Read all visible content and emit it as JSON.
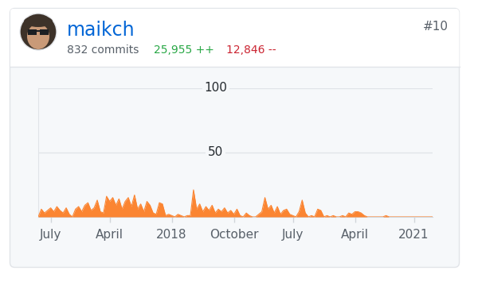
{
  "header": {
    "name": "maikch",
    "rank": "#10",
    "commits": "832 commits",
    "additions": "25,955 ++",
    "deletions": "12,846 --"
  },
  "chart_data": {
    "type": "area",
    "color": "#fb8532",
    "grid": true,
    "categories": [
      null,
      null,
      null,
      null,
      "July",
      null,
      null,
      null,
      null,
      null,
      null,
      null,
      null,
      null,
      null,
      null,
      null,
      null,
      null,
      null,
      null,
      null,
      null,
      "April",
      null,
      null,
      null,
      null,
      null,
      null,
      null,
      null,
      null,
      null,
      null,
      null,
      null,
      null,
      null,
      null,
      null,
      null,
      null,
      "2018",
      null,
      null,
      null,
      null,
      null,
      null,
      null,
      null,
      null,
      null,
      null,
      null,
      null,
      null,
      null,
      null,
      null,
      null,
      null,
      "October",
      null,
      null,
      null,
      null,
      null,
      null,
      null,
      null,
      null,
      null,
      null,
      null,
      null,
      null,
      null,
      null,
      null,
      null,
      "July",
      null,
      null,
      null,
      null,
      null,
      null,
      null,
      null,
      null,
      null,
      null,
      null,
      null,
      null,
      null,
      null,
      null,
      null,
      null,
      "April",
      null,
      null,
      null,
      null,
      null,
      null,
      null,
      null,
      null,
      null,
      null,
      null,
      null,
      null,
      null,
      null,
      null,
      null,
      "2021",
      null,
      null,
      null,
      null,
      null,
      null
    ],
    "values": [
      0,
      6,
      3,
      5,
      7,
      4,
      8,
      5,
      3,
      7,
      2,
      0,
      6,
      8,
      4,
      9,
      11,
      5,
      7,
      13,
      4,
      3,
      16,
      12,
      15,
      9,
      14,
      6,
      12,
      15,
      8,
      17,
      6,
      10,
      4,
      12,
      9,
      3,
      2,
      11,
      10,
      1,
      2,
      1,
      0,
      2,
      1,
      0,
      1,
      1,
      21,
      6,
      10,
      4,
      8,
      5,
      9,
      3,
      6,
      4,
      7,
      3,
      5,
      2,
      6,
      1,
      0,
      3,
      1,
      0,
      0,
      2,
      4,
      15,
      6,
      9,
      3,
      8,
      2,
      5,
      6,
      2,
      1,
      0,
      4,
      13,
      3,
      0,
      1,
      0,
      6,
      5,
      0,
      1,
      0,
      1,
      0,
      0,
      1,
      0,
      3,
      2,
      4,
      4,
      3,
      1,
      0,
      0,
      0,
      0,
      0,
      0,
      1,
      0,
      0,
      0,
      0,
      0,
      0,
      0,
      0,
      0,
      0,
      0,
      0,
      0,
      0,
      0
    ],
    "ylim": [
      0,
      100
    ],
    "yticks": [
      50,
      100
    ]
  }
}
